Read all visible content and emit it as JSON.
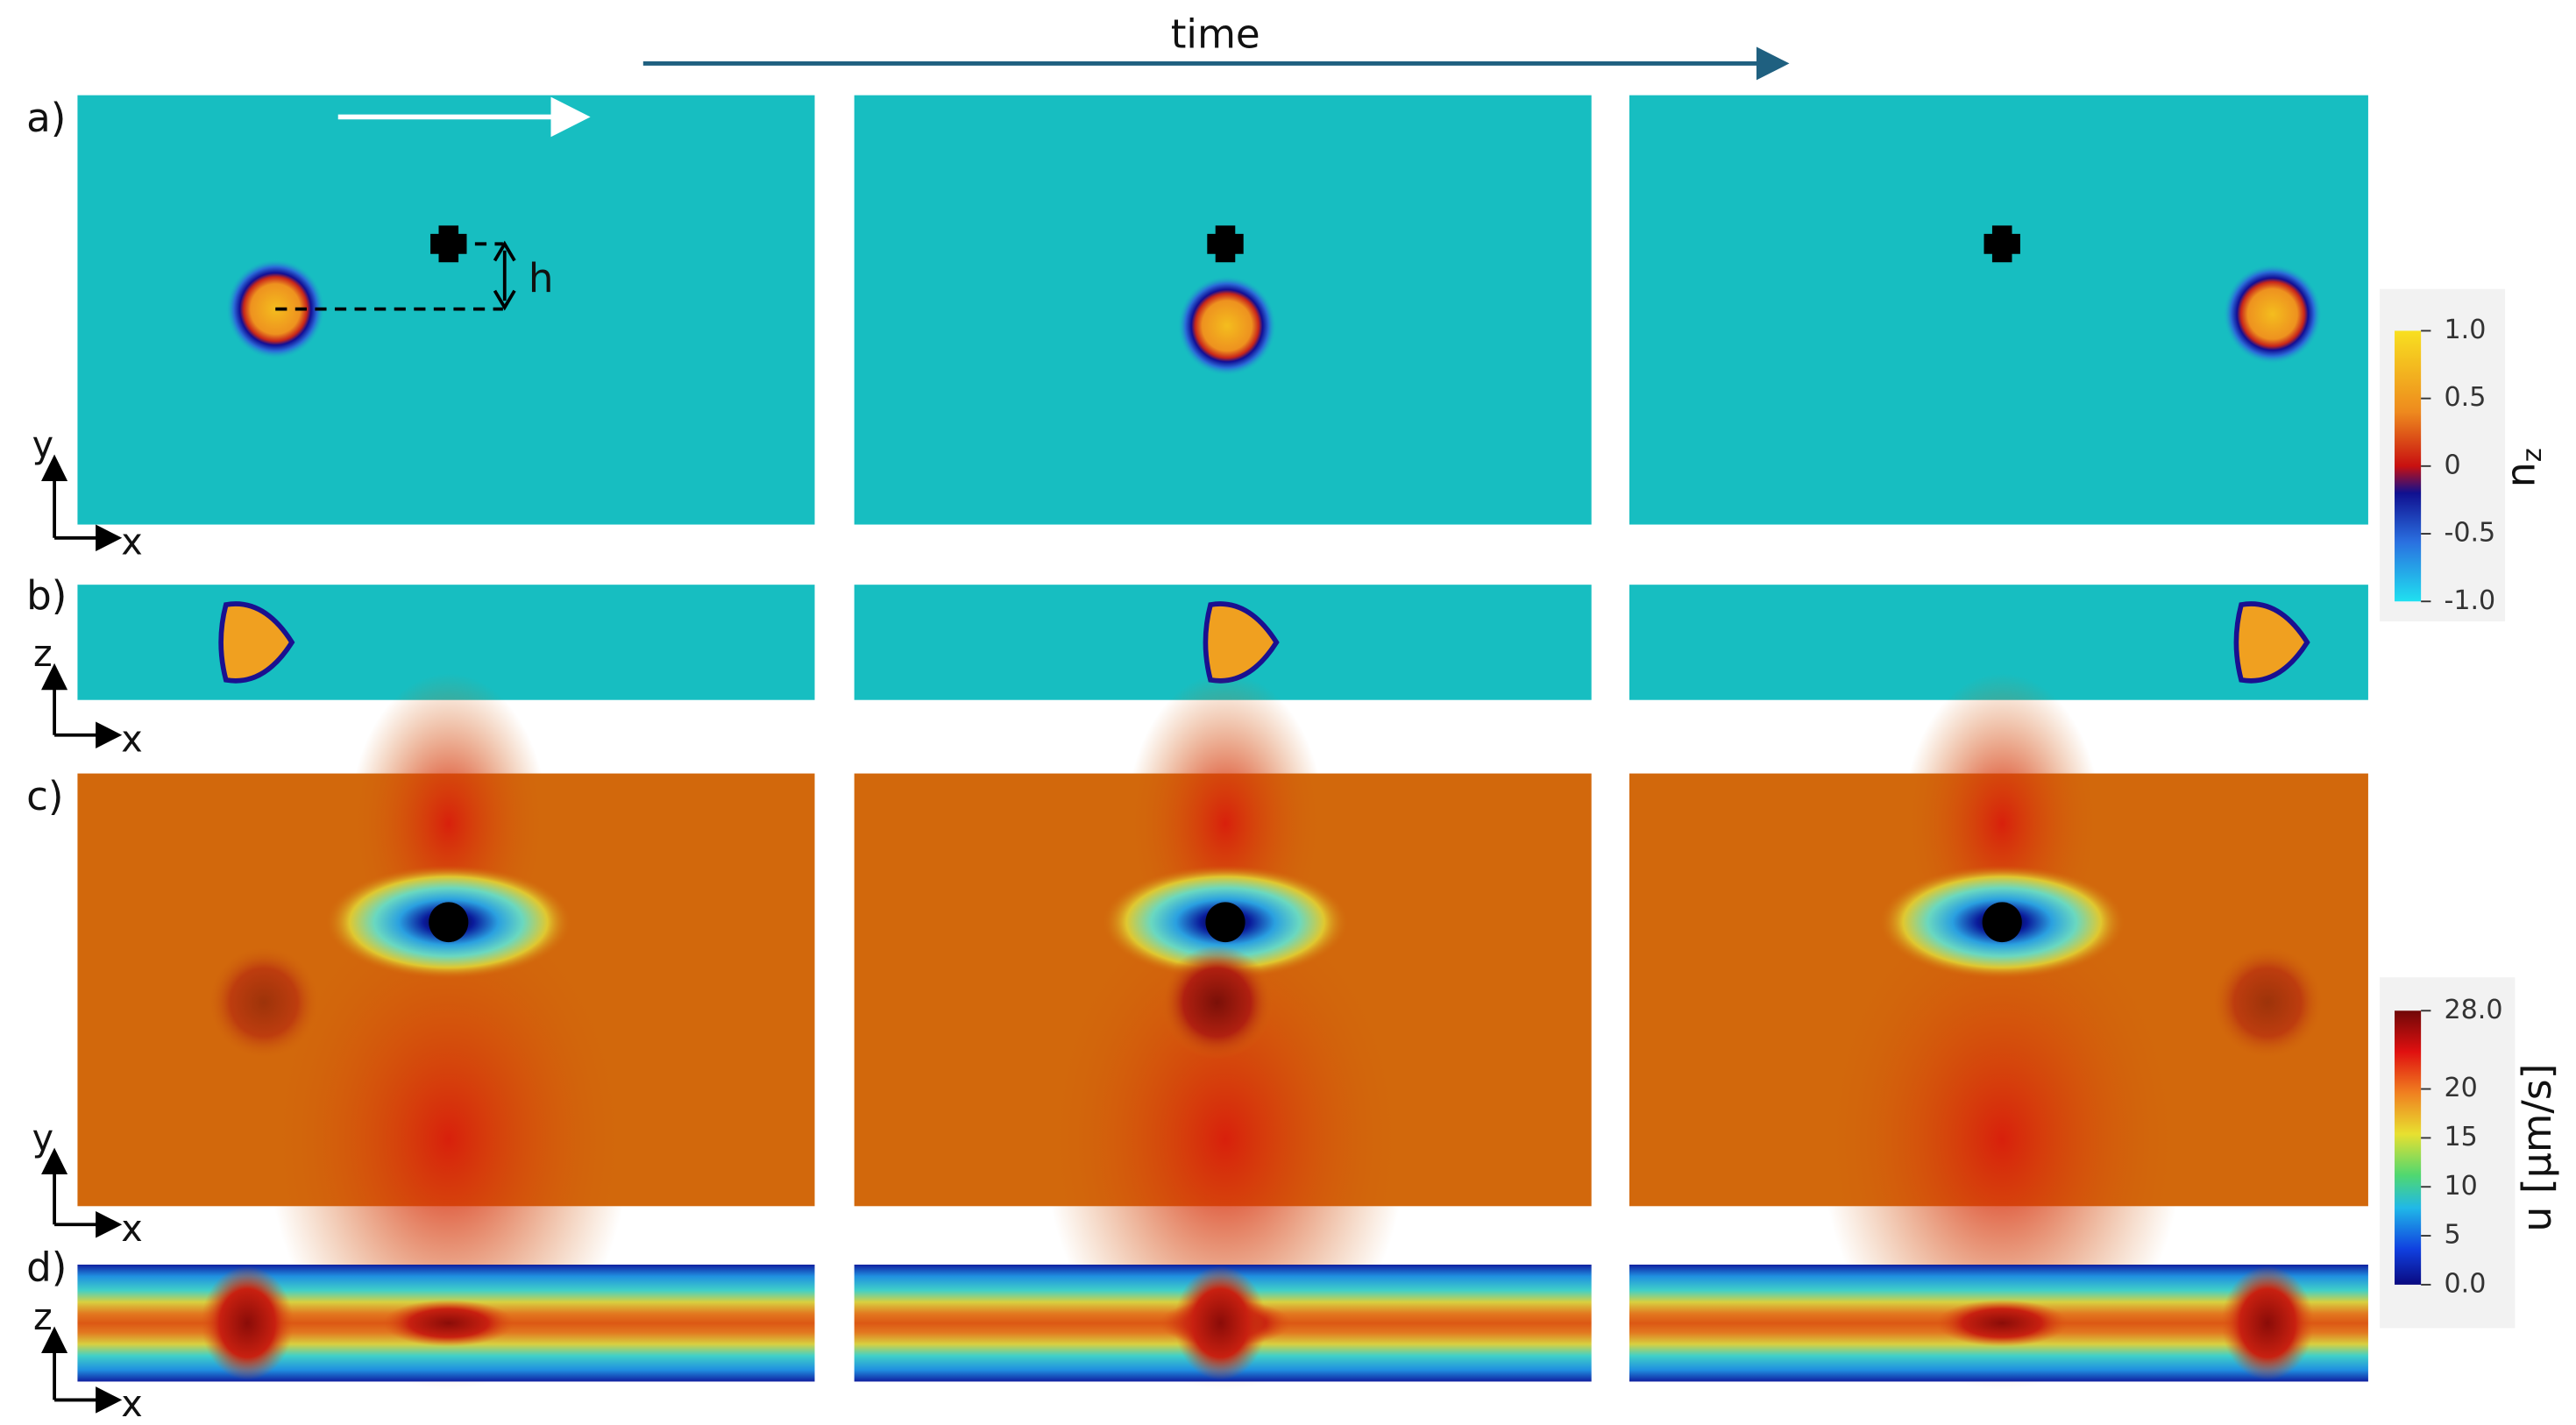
{
  "header": {
    "title": "time"
  },
  "panels": [
    {
      "label": "a)",
      "axis_v": "y",
      "axis_h": "x",
      "distance_label": "h"
    },
    {
      "label": "b)",
      "axis_v": "z",
      "axis_h": "x"
    },
    {
      "label": "c)",
      "axis_v": "y",
      "axis_h": "x"
    },
    {
      "label": "d)",
      "axis_v": "z",
      "axis_h": "x"
    }
  ],
  "colorbars": [
    {
      "label": "n",
      "label_subscript": "z",
      "lim": [
        -1,
        1
      ],
      "ticks": [
        {
          "value": 1,
          "label": "1.0"
        },
        0.5,
        0,
        -0.5,
        {
          "value": -1,
          "label": "-1.0"
        }
      ]
    },
    {
      "label": "u [μm/s]",
      "lim": [
        0,
        28
      ],
      "ticks": [
        {
          "value": 28,
          "label": "28.0"
        },
        20,
        15,
        10,
        5,
        {
          "value": 0,
          "label": "0.0"
        }
      ]
    }
  ]
}
